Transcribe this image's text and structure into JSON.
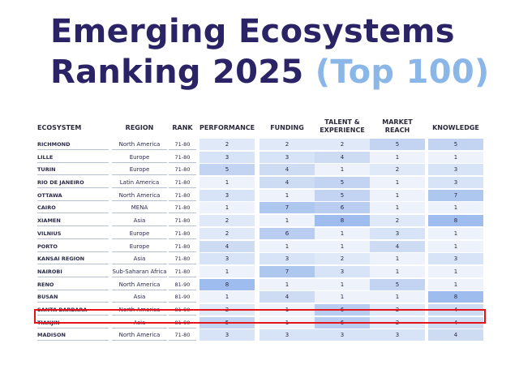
{
  "title": {
    "line1": "Emerging Ecosystems",
    "line2": "Ranking 2025",
    "line2_accent": "(Top 100)"
  },
  "headers": {
    "ecosystem": "ECOSYSTEM",
    "region": "REGION",
    "rank": "RANK",
    "performance": "PERFORMANCE",
    "funding": "FUNDING",
    "talent": "TALENT & EXPERIENCE",
    "market": "MARKET REACH",
    "knowledge": "KNOWLEDGE"
  },
  "score_colors": {
    "1": "#eef3fb",
    "2": "#dfe9f8",
    "3": "#d7e3f6",
    "4": "#cddcf3",
    "5": "#c2d4f1",
    "6": "#b8cdf0",
    "7": "#aec7ef",
    "8": "#9ebcee"
  },
  "rows": [
    {
      "ecosystem": "RICHMOND",
      "region": "North America",
      "rank": "71-80",
      "scores": [
        2,
        2,
        2,
        5,
        5
      ]
    },
    {
      "ecosystem": "LILLE",
      "region": "Europe",
      "rank": "71-80",
      "scores": [
        3,
        3,
        4,
        1,
        1
      ]
    },
    {
      "ecosystem": "TURIN",
      "region": "Europe",
      "rank": "71-80",
      "scores": [
        5,
        4,
        1,
        2,
        3
      ]
    },
    {
      "ecosystem": "RIO DE JANEIRO",
      "region": "Latin America",
      "rank": "71-80",
      "scores": [
        1,
        4,
        5,
        1,
        3
      ]
    },
    {
      "ecosystem": "OTTAWA",
      "region": "North America",
      "rank": "71-80",
      "scores": [
        3,
        1,
        5,
        1,
        7
      ]
    },
    {
      "ecosystem": "CAIRO",
      "region": "MENA",
      "rank": "71-80",
      "scores": [
        1,
        7,
        6,
        1,
        1
      ]
    },
    {
      "ecosystem": "XIAMEN",
      "region": "Asia",
      "rank": "71-80",
      "scores": [
        2,
        1,
        8,
        2,
        8
      ]
    },
    {
      "ecosystem": "VILNIUS",
      "region": "Europe",
      "rank": "71-80",
      "scores": [
        2,
        6,
        1,
        3,
        1
      ]
    },
    {
      "ecosystem": "PORTO",
      "region": "Europe",
      "rank": "71-80",
      "scores": [
        4,
        1,
        1,
        4,
        1
      ]
    },
    {
      "ecosystem": "KANSAI REGION",
      "region": "Asia",
      "rank": "71-80",
      "scores": [
        3,
        3,
        2,
        1,
        3
      ]
    },
    {
      "ecosystem": "NAIROBI",
      "region": "Sub-Saharan Africa",
      "rank": "71-80",
      "scores": [
        1,
        7,
        3,
        1,
        1
      ]
    },
    {
      "ecosystem": "RENO",
      "region": "North America",
      "rank": "81-90",
      "scores": [
        8,
        1,
        1,
        5,
        1
      ]
    },
    {
      "ecosystem": "BUSAN",
      "region": "Asia",
      "rank": "81-90",
      "scores": [
        1,
        4,
        1,
        1,
        8
      ],
      "highlighted": true
    },
    {
      "ecosystem": "SANTA BARBARA",
      "region": "North America",
      "rank": "81-90",
      "scores": [
        2,
        1,
        6,
        2,
        4
      ]
    },
    {
      "ecosystem": "TIANJIN",
      "region": "Asia",
      "rank": "81-90",
      "scores": [
        5,
        1,
        6,
        2,
        4
      ]
    },
    {
      "ecosystem": "MADISON",
      "region": "North America",
      "rank": "71-80",
      "scores": [
        3,
        3,
        3,
        3,
        4
      ]
    }
  ]
}
